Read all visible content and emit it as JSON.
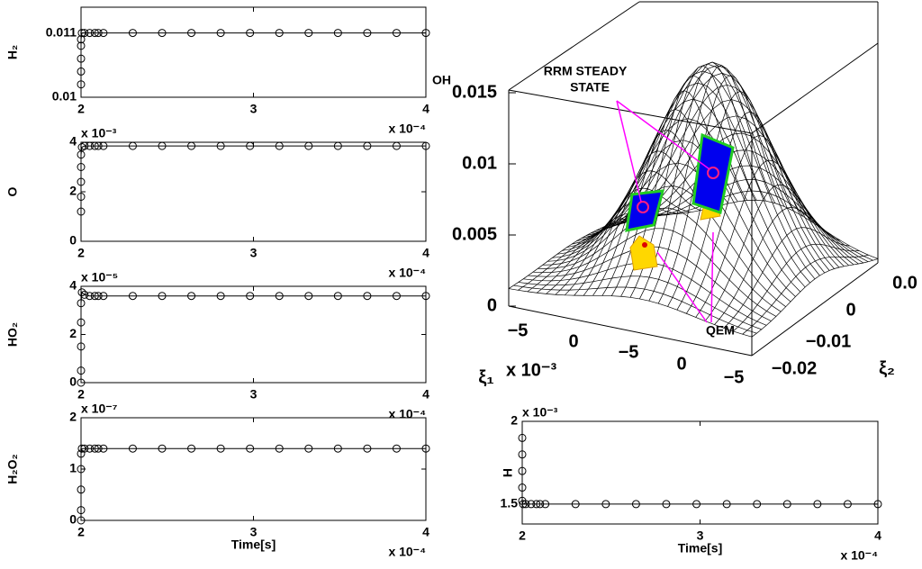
{
  "chart_data": [
    {
      "type": "line",
      "ylabel": "H₂",
      "xlim": [
        2,
        4
      ],
      "xticks": [
        2,
        3,
        4
      ],
      "x_multiplier": "x 10⁻⁴",
      "ylim": [
        0.01,
        0.0114
      ],
      "yticks": [
        0.01,
        0.011
      ],
      "x": [
        2,
        2,
        2,
        2,
        2,
        2.005,
        2.02,
        2.05,
        2.08,
        2.1,
        2.13,
        2.3,
        2.47,
        2.64,
        2.81,
        2.98,
        3.15,
        3.32,
        3.49,
        3.66,
        3.83,
        4
      ],
      "values": [
        0.0102,
        0.0104,
        0.0106,
        0.0108,
        0.0109,
        0.011,
        0.011,
        0.011,
        0.011,
        0.011,
        0.011,
        0.011,
        0.011,
        0.011,
        0.011,
        0.011,
        0.011,
        0.011,
        0.011,
        0.011,
        0.011,
        0.011
      ]
    },
    {
      "type": "line",
      "ylabel": "O",
      "y_multiplier": "x 10⁻³",
      "xlim": [
        2,
        4
      ],
      "xticks": [
        2,
        3,
        4
      ],
      "x_multiplier": "x 10⁻⁴",
      "ylim": [
        0,
        4
      ],
      "yticks": [
        0,
        2,
        4
      ],
      "x": [
        2,
        2,
        2,
        2,
        2,
        2.005,
        2.02,
        2.05,
        2.08,
        2.1,
        2.13,
        2.3,
        2.47,
        2.64,
        2.81,
        2.98,
        3.15,
        3.32,
        3.49,
        3.66,
        3.83,
        4
      ],
      "values": [
        1.2,
        1.8,
        2.4,
        3.0,
        3.5,
        3.8,
        3.85,
        3.85,
        3.85,
        3.85,
        3.85,
        3.85,
        3.85,
        3.85,
        3.85,
        3.85,
        3.85,
        3.85,
        3.85,
        3.85,
        3.85,
        3.85
      ]
    },
    {
      "type": "line",
      "ylabel": "HO₂",
      "y_multiplier": "x 10⁻⁵",
      "xlim": [
        2,
        4
      ],
      "xticks": [
        2,
        3,
        4
      ],
      "x_multiplier": "x 10⁻⁴",
      "ylim": [
        0,
        4
      ],
      "yticks": [
        0,
        2,
        4
      ],
      "x": [
        2,
        2,
        2,
        2,
        2,
        2.005,
        2.02,
        2.05,
        2.08,
        2.1,
        2.13,
        2.3,
        2.47,
        2.64,
        2.81,
        2.98,
        3.15,
        3.32,
        3.49,
        3.66,
        3.83,
        4
      ],
      "values": [
        0,
        0.5,
        1.5,
        2.5,
        3.3,
        3.75,
        3.65,
        3.6,
        3.6,
        3.6,
        3.6,
        3.6,
        3.6,
        3.6,
        3.6,
        3.6,
        3.6,
        3.6,
        3.6,
        3.6,
        3.6,
        3.6
      ]
    },
    {
      "type": "line",
      "ylabel": "H₂O₂",
      "y_multiplier": "x 10⁻⁷",
      "xlabel": "Time[s]",
      "xlim": [
        2,
        4
      ],
      "xticks": [
        2,
        3,
        4
      ],
      "x_multiplier": "x 10⁻⁴",
      "ylim": [
        0,
        2
      ],
      "yticks": [
        0,
        1,
        2
      ],
      "x": [
        2,
        2,
        2,
        2,
        2,
        2.005,
        2.02,
        2.05,
        2.08,
        2.1,
        2.13,
        2.3,
        2.47,
        2.64,
        2.81,
        2.98,
        3.15,
        3.32,
        3.49,
        3.66,
        3.83,
        4
      ],
      "values": [
        0,
        0.2,
        0.6,
        1.0,
        1.3,
        1.4,
        1.4,
        1.4,
        1.4,
        1.4,
        1.4,
        1.4,
        1.4,
        1.4,
        1.4,
        1.4,
        1.4,
        1.4,
        1.4,
        1.4,
        1.4,
        1.4
      ]
    },
    {
      "type": "surface3d",
      "zlabel": "OH",
      "zlim": [
        0,
        0.015
      ],
      "zticks": [
        0,
        0.005,
        0.01,
        0.015
      ],
      "xlabel": "ξ₁",
      "x_multiplier": "x 10⁻³",
      "xtick_labels": [
        "−5",
        "0",
        "−5",
        "0",
        "−5"
      ],
      "ylabel": "ξ₂",
      "ytick_labels": [
        "0.0",
        "0",
        "−0.01",
        "−0.02"
      ],
      "annotations": [
        "RRM STEADY",
        "STATE",
        "QEM"
      ]
    },
    {
      "type": "line",
      "ylabel": "H",
      "y_multiplier": "x 10⁻³",
      "xlabel": "Time[s]",
      "xlim": [
        2,
        4
      ],
      "xticks": [
        2,
        3,
        4
      ],
      "x_multiplier": "x 10⁻⁴",
      "ylim": [
        1.38,
        2
      ],
      "yticks": [
        1.5,
        2
      ],
      "x": [
        2,
        2,
        2,
        2,
        2,
        2.005,
        2.02,
        2.05,
        2.08,
        2.1,
        2.13,
        2.3,
        2.47,
        2.64,
        2.81,
        2.98,
        3.15,
        3.32,
        3.49,
        3.66,
        3.83,
        4
      ],
      "values": [
        1.9,
        1.8,
        1.7,
        1.6,
        1.52,
        1.5,
        1.5,
        1.5,
        1.5,
        1.5,
        1.5,
        1.5,
        1.5,
        1.5,
        1.5,
        1.5,
        1.5,
        1.5,
        1.5,
        1.5,
        1.5,
        1.5
      ]
    }
  ]
}
